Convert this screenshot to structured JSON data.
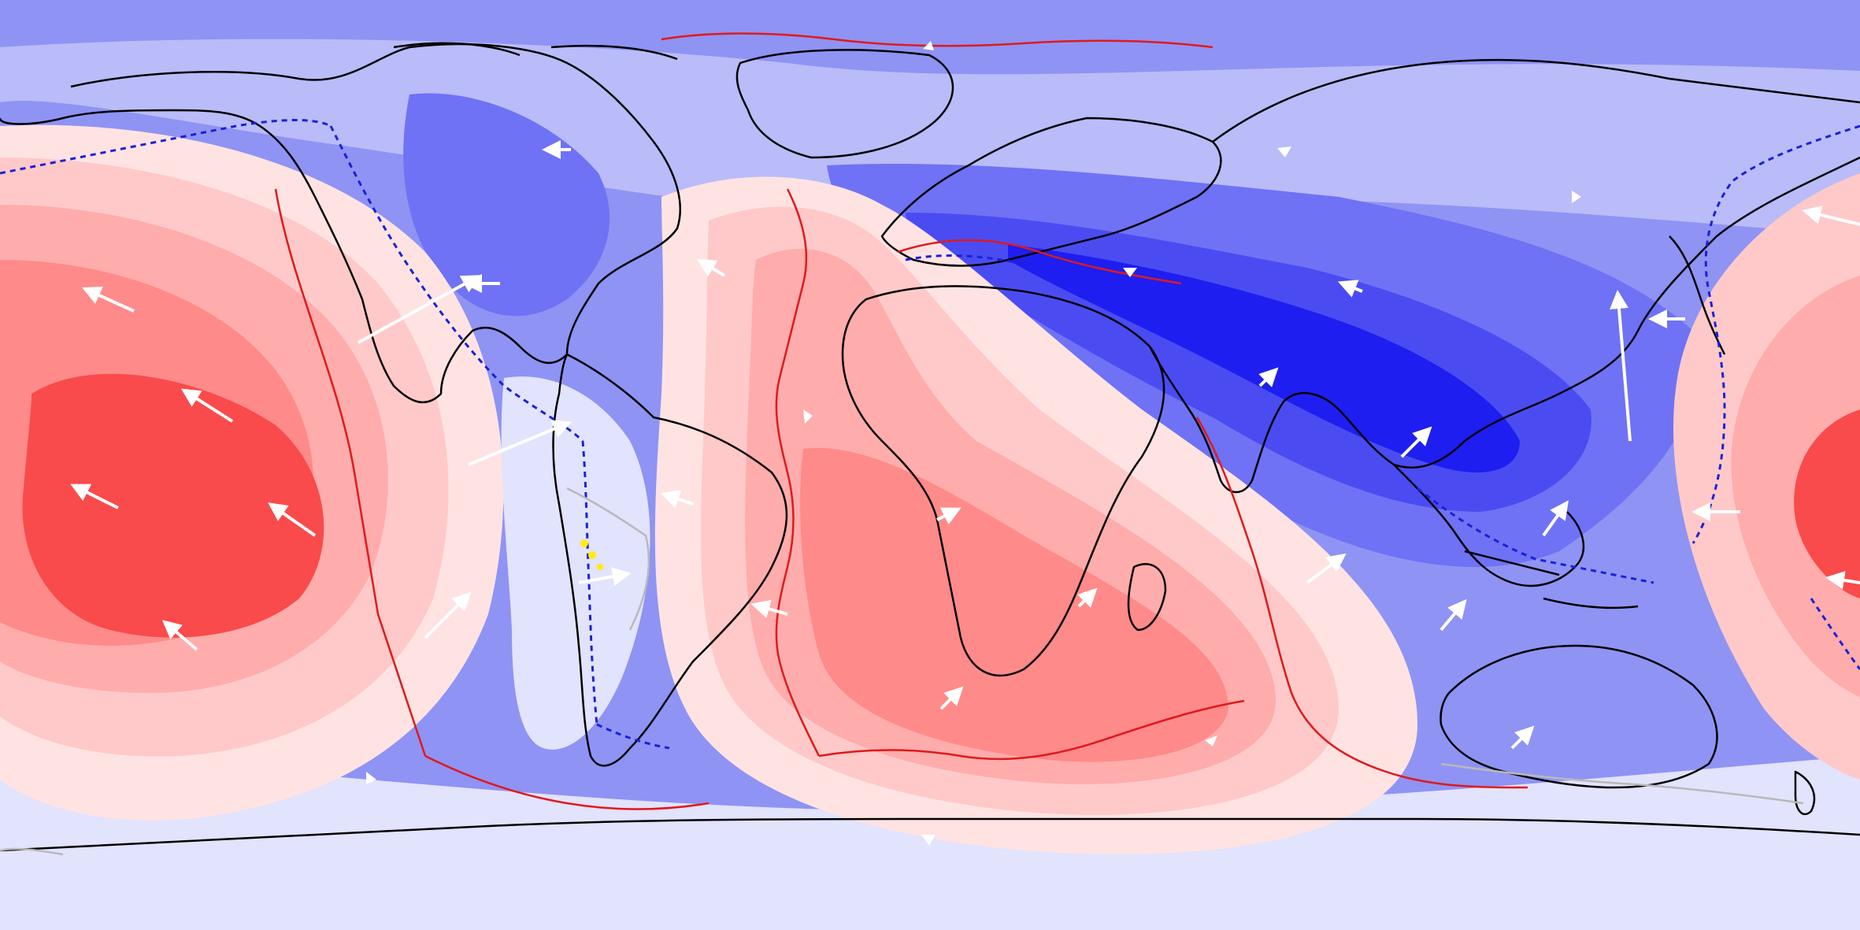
{
  "map": {
    "projection": "equirectangular",
    "field": "mantle-flow-anomaly",
    "colors": {
      "ocean_background": "#8f93f3",
      "blue_strong": "#1e1ef0",
      "blue_medium": "#4a4cf2",
      "blue_light": "#6f72f4",
      "blue_pale": "#b9bcf8",
      "blue_faint": "#e2e3fc",
      "neutral": "#fdf0f0",
      "red_faint": "#ffe3e3",
      "red_pale": "#ffc9c9",
      "red_light": "#ffacac",
      "red_medium": "#ff8a8a",
      "red_strong": "#f94b4b",
      "coastline": "#000000",
      "plate_boundary": "#e0191b",
      "subduction_zone": "#1a22d6",
      "vector_arrow": "#ffffff",
      "minor_boundary": "#b9b9b9",
      "highlight": "#ffee00"
    },
    "legend": "none",
    "labels": "none"
  }
}
